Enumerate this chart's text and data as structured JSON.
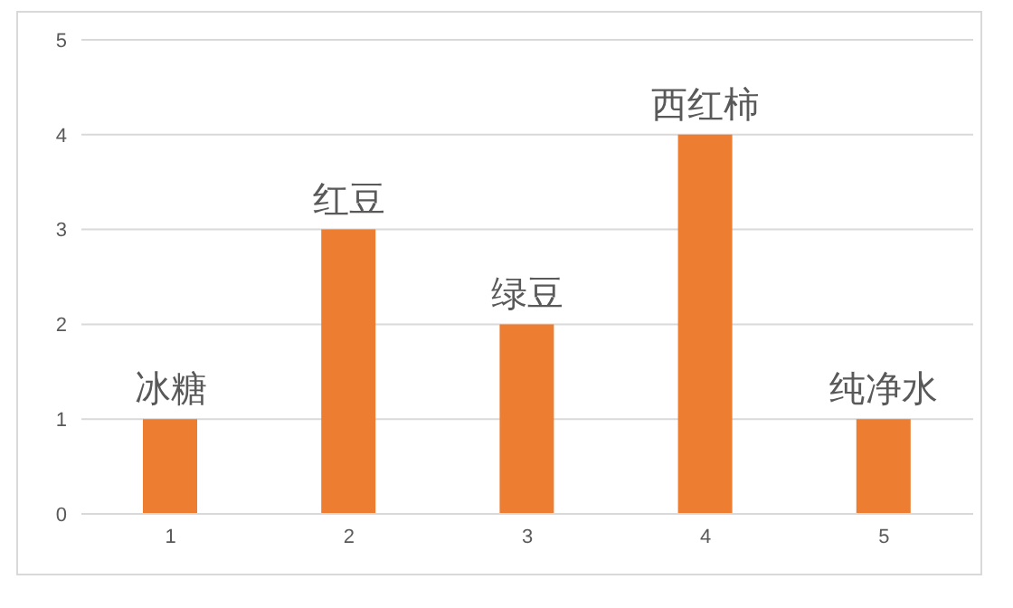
{
  "chart_data": {
    "type": "bar",
    "categories": [
      "1",
      "2",
      "3",
      "4",
      "5"
    ],
    "values": [
      1,
      3,
      2,
      4,
      1
    ],
    "color": "#ed7d31",
    "ylim": [
      0,
      5
    ],
    "yticks": [
      0,
      1,
      2,
      3,
      4,
      5
    ],
    "grid": "y",
    "annotations": [
      {
        "text": "冰糖",
        "x": "1",
        "y": 1
      },
      {
        "text": "红豆",
        "x": "2",
        "y": 3
      },
      {
        "text": "绿豆",
        "x": "3",
        "y": 2
      },
      {
        "text": "西红柿",
        "x": "4",
        "y": 4
      },
      {
        "text": "纯净水",
        "x": "5",
        "y": 1
      }
    ]
  }
}
